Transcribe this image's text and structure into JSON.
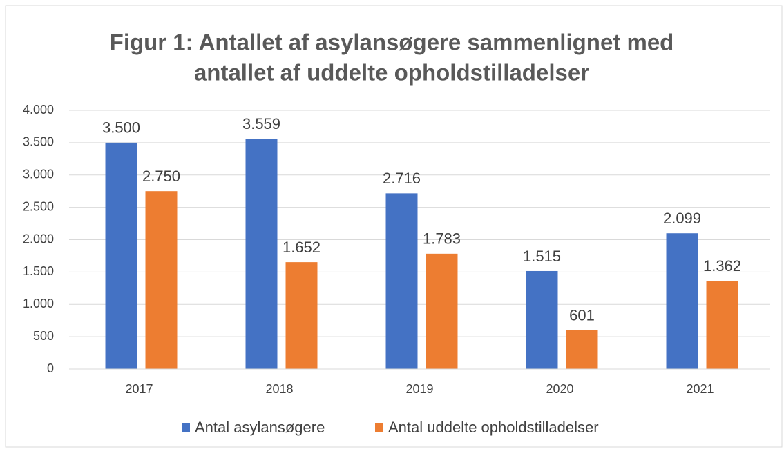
{
  "chart_data": {
    "type": "bar",
    "title": [
      "Figur 1: Antallet af asylansøgere sammenlignet med",
      "antallet af uddelte opholdstilladelser"
    ],
    "categories": [
      "2017",
      "2018",
      "2019",
      "2020",
      "2021"
    ],
    "series": [
      {
        "name": "Antal asylansøgere",
        "color": "#4472c4",
        "values": [
          3500,
          3559,
          2716,
          1515,
          2099
        ],
        "value_labels": [
          "3.500",
          "3.559",
          "2.716",
          "1.515",
          "2.099"
        ]
      },
      {
        "name": "Antal uddelte opholdstilladelser",
        "color": "#ed7d31",
        "values": [
          2750,
          1652,
          1783,
          601,
          1362
        ],
        "value_labels": [
          "2.750",
          "1.652",
          "1.783",
          "601",
          "1.362"
        ]
      }
    ],
    "ylim": [
      0,
      4000
    ],
    "yticks": [
      0,
      500,
      {
        "value": 1000,
        "label": "1.000"
      },
      {
        "value": 1500,
        "label": "1.500"
      },
      {
        "value": 2000,
        "label": "2.000"
      },
      {
        "value": 2500,
        "label": "2.500"
      },
      {
        "value": 3000,
        "label": "3.000"
      },
      {
        "value": 3500,
        "label": "3.500"
      },
      {
        "value": 4000,
        "label": "4.000"
      }
    ],
    "grid": true,
    "legend": "bottom"
  }
}
